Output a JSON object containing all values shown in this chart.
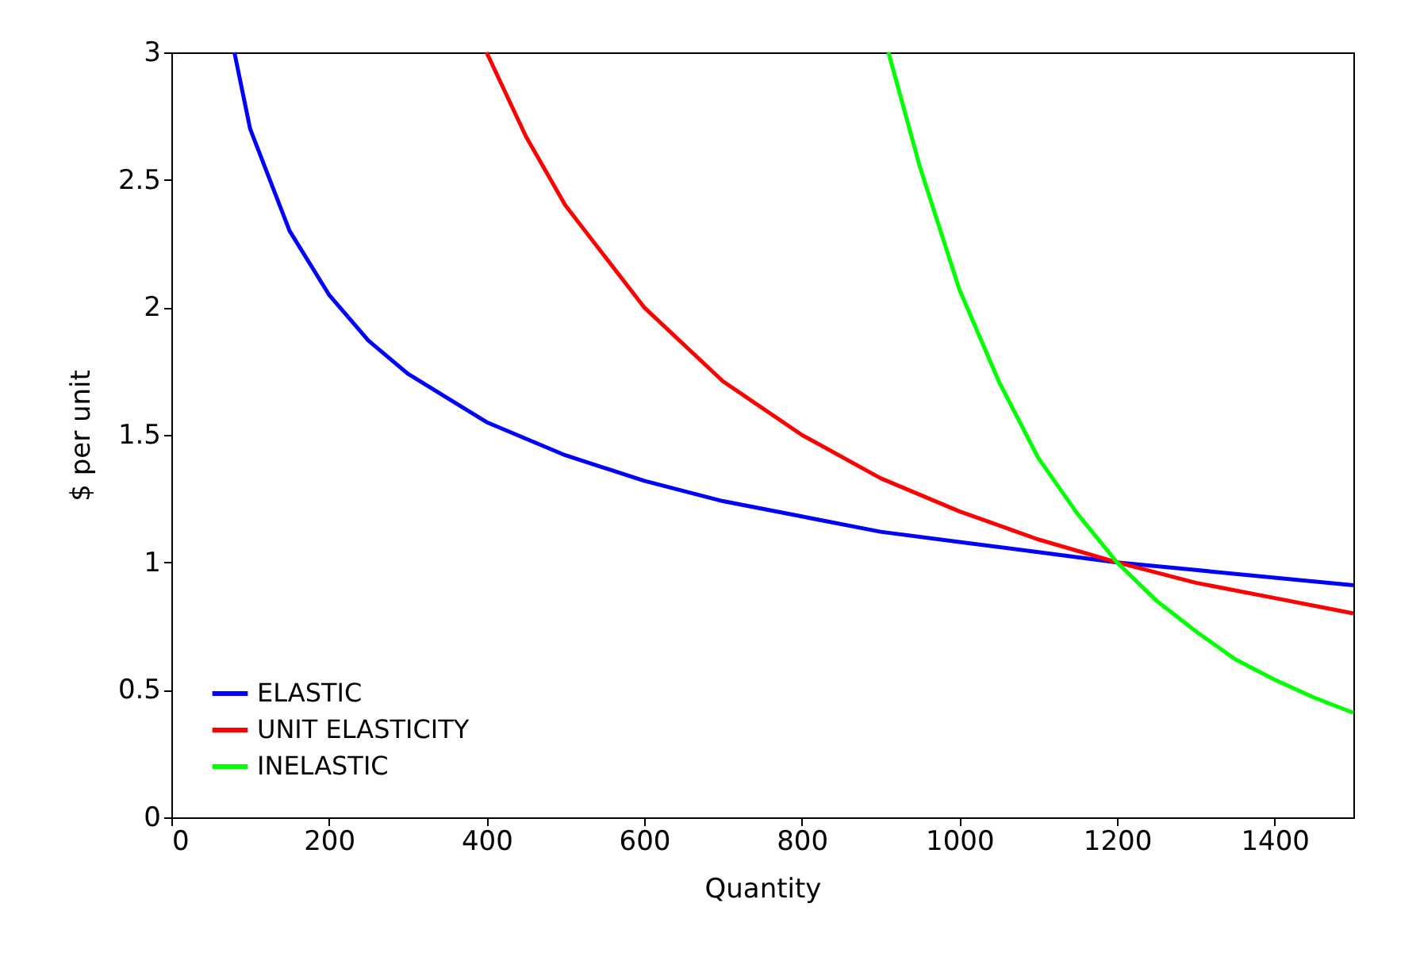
{
  "chart_data": {
    "type": "line",
    "xlabel": "Quantity",
    "ylabel": "$ per unit",
    "xlim": [
      0,
      1500
    ],
    "ylim": [
      0,
      3
    ],
    "xticks": [
      0,
      200,
      400,
      600,
      800,
      1000,
      1200,
      1400
    ],
    "yticks": [
      0,
      0.5,
      1,
      1.5,
      2,
      2.5,
      3
    ],
    "legend": "bottom left",
    "line_style": "solid",
    "series": [
      {
        "name": "ELASTIC",
        "color": "#0000ff",
        "x": [
          80,
          100,
          150,
          200,
          250,
          300,
          400,
          500,
          600,
          700,
          800,
          900,
          1000,
          1100,
          1200,
          1300,
          1400,
          1500
        ],
        "values": [
          3.0,
          2.7,
          2.3,
          2.05,
          1.87,
          1.74,
          1.55,
          1.42,
          1.32,
          1.24,
          1.18,
          1.12,
          1.08,
          1.04,
          1.0,
          0.97,
          0.94,
          0.91
        ]
      },
      {
        "name": "UNIT ELASTICITY",
        "color": "#ff0000",
        "x": [
          400,
          450,
          500,
          600,
          700,
          800,
          900,
          1000,
          1100,
          1200,
          1300,
          1400,
          1500
        ],
        "values": [
          3.0,
          2.67,
          2.4,
          2.0,
          1.71,
          1.5,
          1.33,
          1.2,
          1.09,
          1.0,
          0.92,
          0.86,
          0.8
        ]
      },
      {
        "name": "INELASTIC",
        "color": "#00ff00",
        "x": [
          910,
          950,
          1000,
          1050,
          1100,
          1150,
          1200,
          1250,
          1300,
          1350,
          1400,
          1450,
          1500
        ],
        "values": [
          3.0,
          2.55,
          2.07,
          1.71,
          1.41,
          1.19,
          1.0,
          0.85,
          0.73,
          0.62,
          0.54,
          0.47,
          0.41
        ]
      }
    ]
  }
}
